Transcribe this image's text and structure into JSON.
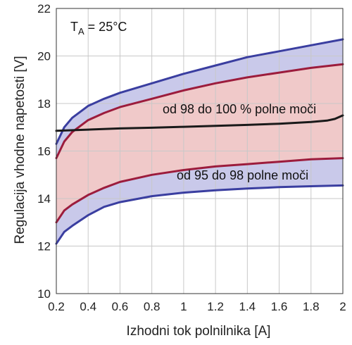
{
  "chart_data": {
    "type": "area",
    "xlabel": "Izhodni tok polnilnika [A]",
    "ylabel": "Regulacija vhodne napetosti [V]",
    "xlim": [
      0.2,
      2.0
    ],
    "ylim": [
      10,
      22
    ],
    "x_ticks": [
      "0.2",
      "0.4",
      "0.6",
      "0.8",
      "1",
      "1.2",
      "1.4",
      "1.6",
      "1.8",
      "2"
    ],
    "y_ticks": [
      "10",
      "12",
      "14",
      "16",
      "18",
      "20",
      "22"
    ],
    "grid": true,
    "annotation_temp": {
      "main": "T",
      "sub": "A",
      "rest": " = 25°C"
    },
    "annotation_upper": "od 98 do 100 % polne moči",
    "annotation_lower": "od 95 do 98 polne moči",
    "colors": {
      "outer_band": "#c9c9ea",
      "inner_band": "#f0c9c9",
      "outer_line": "#3a3ea0",
      "inner_line": "#9c1c3c",
      "threshold_line": "#1a1a1a",
      "grid": "#c8c8c8"
    },
    "series": [
      {
        "x": [
          0.2,
          0.25,
          0.3,
          0.4,
          0.5,
          0.6,
          0.8,
          1.0,
          1.2,
          1.4,
          1.6,
          1.8,
          2.0
        ],
        "values": [
          16.3,
          17.0,
          17.4,
          17.9,
          18.2,
          18.45,
          18.85,
          19.25,
          19.6,
          19.95,
          20.2,
          20.45,
          20.7
        ]
      },
      {
        "x": [
          0.2,
          0.25,
          0.3,
          0.4,
          0.5,
          0.6,
          0.8,
          1.0,
          1.2,
          1.4,
          1.6,
          1.8,
          2.0
        ],
        "values": [
          15.7,
          16.4,
          16.8,
          17.3,
          17.6,
          17.85,
          18.2,
          18.55,
          18.85,
          19.1,
          19.3,
          19.5,
          19.65
        ]
      },
      {
        "x": [
          0.2,
          0.4,
          0.6,
          0.8,
          1.0,
          1.2,
          1.4,
          1.6,
          1.8,
          1.9,
          1.95,
          2.0
        ],
        "values": [
          16.85,
          16.9,
          16.95,
          16.98,
          17.02,
          17.06,
          17.1,
          17.15,
          17.22,
          17.28,
          17.35,
          17.5
        ]
      },
      {
        "x": [
          0.2,
          0.25,
          0.3,
          0.4,
          0.5,
          0.6,
          0.8,
          1.0,
          1.2,
          1.4,
          1.6,
          1.8,
          2.0
        ],
        "values": [
          13.0,
          13.5,
          13.75,
          14.15,
          14.45,
          14.7,
          15.0,
          15.2,
          15.35,
          15.45,
          15.55,
          15.65,
          15.7
        ]
      },
      {
        "x": [
          0.2,
          0.25,
          0.3,
          0.4,
          0.5,
          0.6,
          0.8,
          1.0,
          1.2,
          1.4,
          1.6,
          1.8,
          2.0
        ],
        "values": [
          12.1,
          12.6,
          12.85,
          13.3,
          13.65,
          13.85,
          14.1,
          14.25,
          14.35,
          14.42,
          14.48,
          14.52,
          14.55
        ]
      }
    ]
  }
}
